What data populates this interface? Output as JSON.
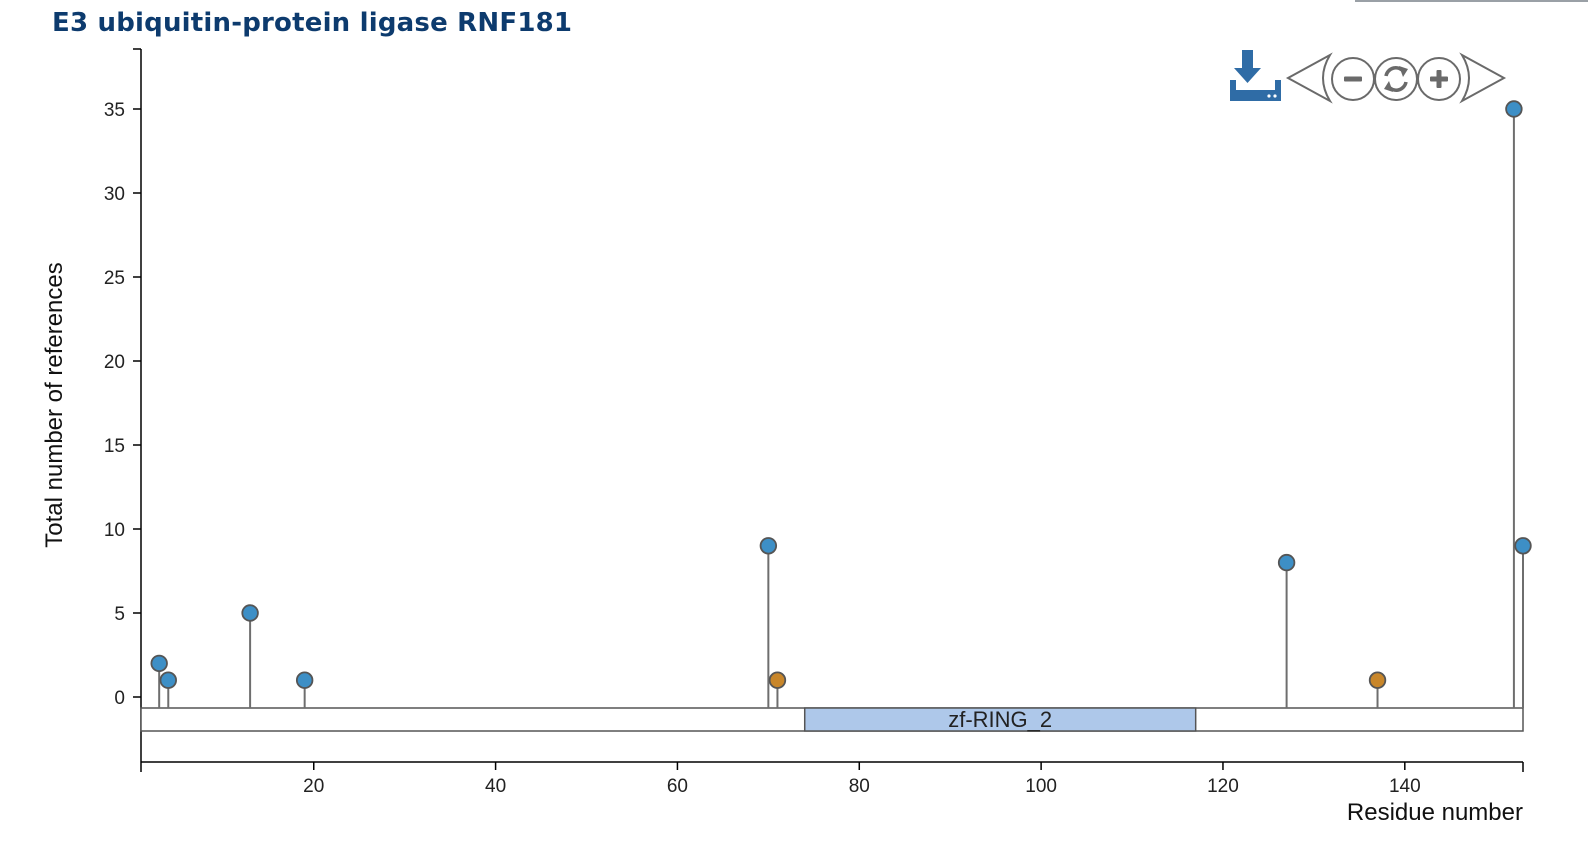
{
  "title": "E3 ubiquitin-protein ligase RNF181",
  "colors": {
    "title": "#0d3b6e",
    "lollipop_blue": "#3d8fc6",
    "lollipop_orange": "#c8862a",
    "stem": "#6e6e6e",
    "domain_fill": "#aec8ea",
    "download_icon": "#2f6ca6",
    "tool_outline": "#6a6a6a"
  },
  "toolbar": {
    "icons": [
      "download-icon",
      "pan-left-icon",
      "zoom-out-icon",
      "reset-icon",
      "zoom-in-icon",
      "pan-right-icon"
    ]
  },
  "chart_data": {
    "type": "lollipop",
    "title": "E3 ubiquitin-protein ligase RNF181",
    "xlabel": "Residue number",
    "ylabel": "Total number of references",
    "xlim": [
      1,
      153
    ],
    "ylim": [
      0,
      38
    ],
    "xticks": [
      20,
      40,
      60,
      80,
      100,
      120,
      140
    ],
    "yticks": [
      0,
      5,
      10,
      15,
      20,
      25,
      30,
      35
    ],
    "points": [
      {
        "x": 3,
        "y": 2,
        "color": "blue"
      },
      {
        "x": 4,
        "y": 1,
        "color": "blue"
      },
      {
        "x": 13,
        "y": 5,
        "color": "blue"
      },
      {
        "x": 19,
        "y": 1,
        "color": "blue"
      },
      {
        "x": 70,
        "y": 9,
        "color": "blue"
      },
      {
        "x": 71,
        "y": 1,
        "color": "orange"
      },
      {
        "x": 127,
        "y": 8,
        "color": "blue"
      },
      {
        "x": 137,
        "y": 1,
        "color": "orange"
      },
      {
        "x": 152,
        "y": 35,
        "color": "blue"
      },
      {
        "x": 153,
        "y": 9,
        "color": "blue"
      }
    ],
    "domains": [
      {
        "name": "zf-RING_2",
        "start": 74,
        "end": 117
      }
    ],
    "grid": false,
    "legend": "none"
  }
}
